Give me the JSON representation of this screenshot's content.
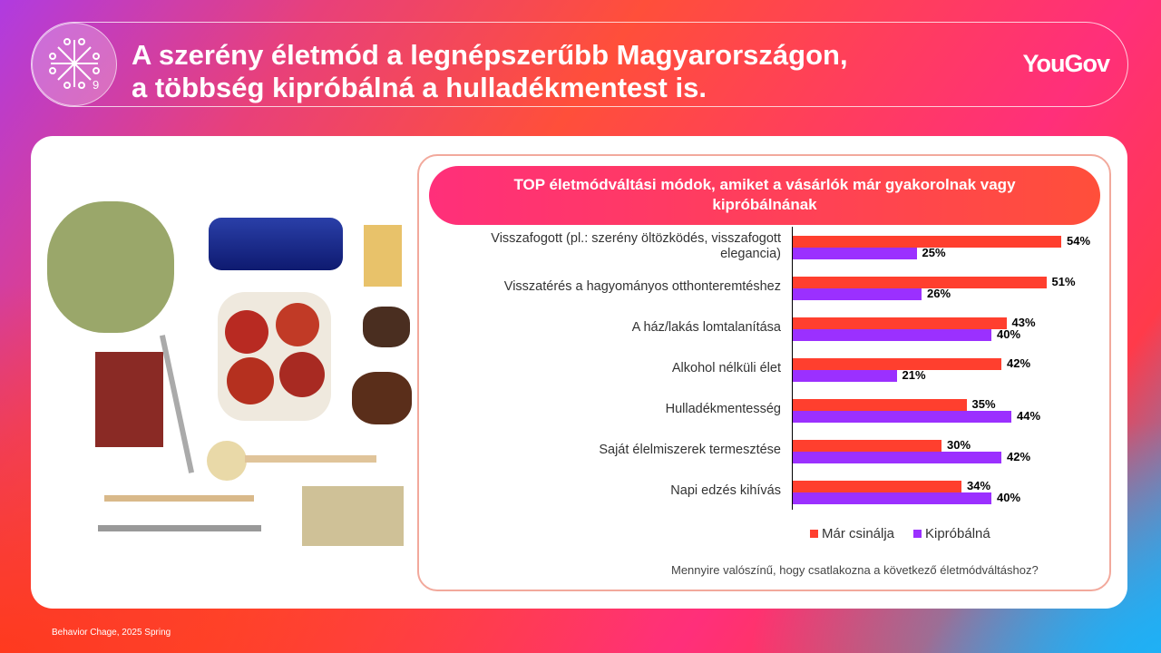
{
  "header": {
    "badge_number": "9",
    "title": "A szerény életmód a legnépszerűbb Magyarországon,\na többség kipróbálná a hulladékmentest is.",
    "logo": "YouGov"
  },
  "chart_data": {
    "type": "bar",
    "title": "TOP életmódváltási módok, amiket a vásárlók már gyakorolnak vagy kipróbálnának",
    "categories": [
      "Visszafogott (pl.: szerény öltözködés, visszafogott elegancia)",
      "Visszatérés a hagyományos otthonteremtéshez",
      "A ház/lakás lomtalanítása",
      "Alkohol nélküli élet",
      "Hulladékmentesség",
      "Saját élelmiszerek termesztése",
      "Napi edzés kihívás"
    ],
    "series": [
      {
        "name": "Már csinálja",
        "color": "#ff3f2e",
        "values": [
          54,
          51,
          43,
          42,
          35,
          30,
          34
        ]
      },
      {
        "name": "Kipróbálná",
        "color": "#9b30ff",
        "values": [
          25,
          26,
          40,
          21,
          44,
          42,
          40
        ]
      }
    ],
    "unit": "%",
    "legend": "bottom",
    "orientation": "horizontal",
    "xlim": [
      0,
      60
    ]
  },
  "question": "Mennyire valószínű, hogy csatlakozna a következő életmódváltáshoz?",
  "footer": "Behavior Chage, 2025 Spring"
}
